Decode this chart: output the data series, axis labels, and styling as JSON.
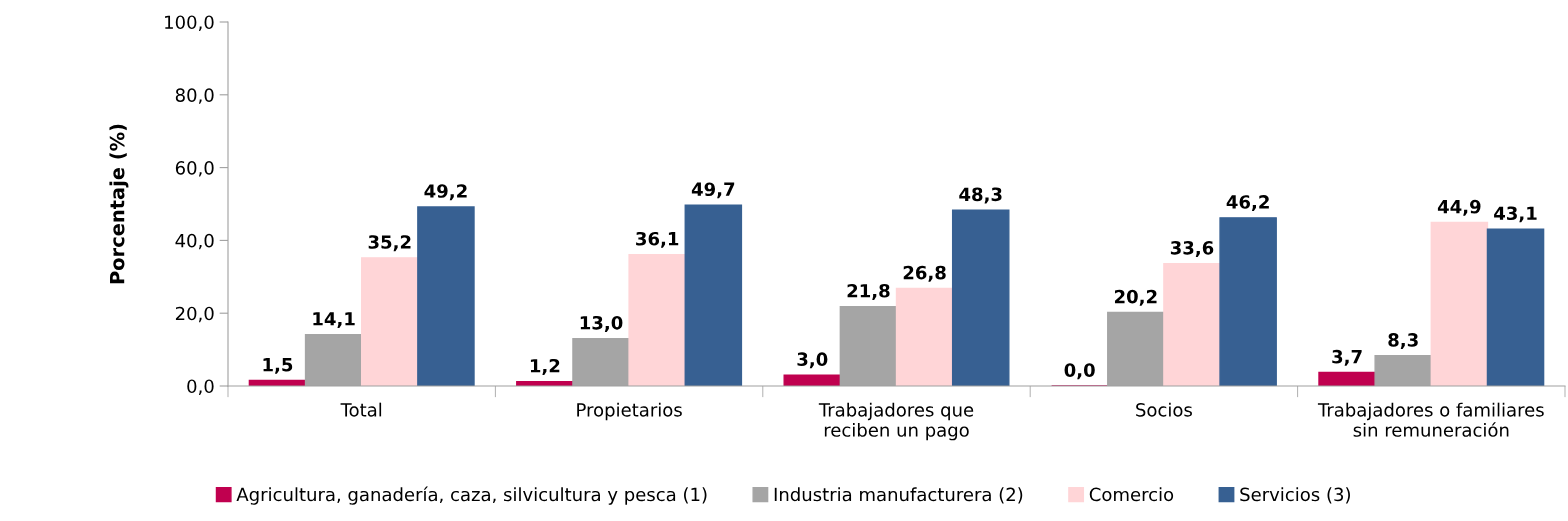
{
  "chart_data": {
    "type": "bar",
    "ylabel": "Porcentaje (%)",
    "categories": [
      "Total",
      "Propietarios",
      "Trabajadores que\nreciben un pago",
      "Socios",
      "Trabajadores o familiares\nsin remuneración"
    ],
    "series": [
      {
        "name": "Agricultura, ganadería, caza, silvicultura y pesca (1)",
        "color": "#c0004f",
        "values": [
          1.5,
          1.2,
          3.0,
          0.0,
          3.7
        ],
        "value_labels": [
          "1,5",
          "1,2",
          "3,0",
          "0,0",
          "3,7"
        ]
      },
      {
        "name": "Industria manufacturera (2)",
        "color": "#a5a5a5",
        "values": [
          14.1,
          13.0,
          21.8,
          20.2,
          8.3
        ],
        "value_labels": [
          "14,1",
          "13,0",
          "21,8",
          "20,2",
          "8,3"
        ]
      },
      {
        "name": "Comercio",
        "color": "#ffd5d7",
        "values": [
          35.2,
          36.1,
          26.8,
          33.6,
          44.9
        ],
        "value_labels": [
          "35,2",
          "36,1",
          "26,8",
          "33,6",
          "44,9"
        ]
      },
      {
        "name": "Servicios (3)",
        "color": "#376092",
        "values": [
          49.2,
          49.7,
          48.3,
          46.2,
          43.1
        ],
        "value_labels": [
          "49,2",
          "49,7",
          "48,3",
          "46,2",
          "43,1"
        ]
      }
    ],
    "ylim": [
      0,
      100
    ],
    "yticks": [
      {
        "value": 0,
        "label": "0,0"
      },
      {
        "value": 20,
        "label": "20,0"
      },
      {
        "value": 40,
        "label": "40,0"
      },
      {
        "value": 60,
        "label": "60,0"
      },
      {
        "value": 80,
        "label": "80,0"
      },
      {
        "value": 100,
        "label": "100,0"
      }
    ],
    "grid": false,
    "legend": "bottom"
  }
}
